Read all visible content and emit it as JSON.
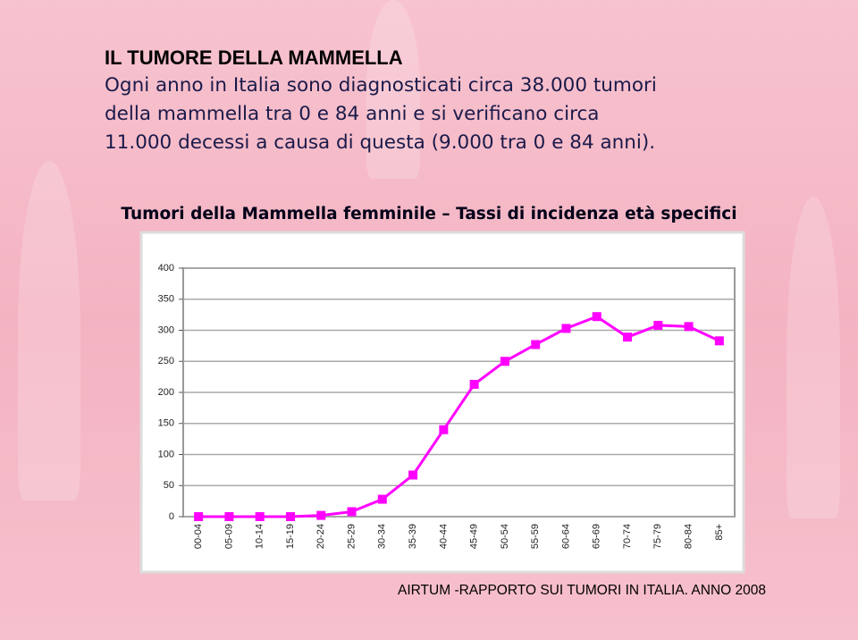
{
  "slide": {
    "title": "IL TUMORE DELLA MAMMELLA",
    "body": [
      "Ogni anno in Italia sono diagnosticati circa 38.000 tumori",
      "della mammella tra 0 e 84 anni e si verificano circa",
      "11.000 decessi a causa di questa (9.000 tra 0 e 84 anni)."
    ],
    "footer": "AIRTUM -RAPPORTO SUI TUMORI IN ITALIA. ANNO 2008"
  },
  "chart_data": {
    "type": "line",
    "title": "Tumori della Mammella femminile – Tassi di incidenza età specifici",
    "categories": [
      "00-04",
      "05-09",
      "10-14",
      "15-19",
      "20-24",
      "25-29",
      "30-34",
      "35-39",
      "40-44",
      "45-49",
      "50-54",
      "55-59",
      "60-64",
      "65-69",
      "70-74",
      "75-79",
      "80-84",
      "85+"
    ],
    "values": [
      0,
      0,
      0,
      0,
      2,
      8,
      28,
      67,
      140,
      213,
      250,
      277,
      303,
      322,
      289,
      308,
      306,
      283
    ],
    "color": "#ff00ff",
    "ylim": [
      0,
      400
    ],
    "yticks": [
      0,
      50,
      100,
      150,
      200,
      250,
      300,
      350,
      400
    ],
    "grid": true
  }
}
